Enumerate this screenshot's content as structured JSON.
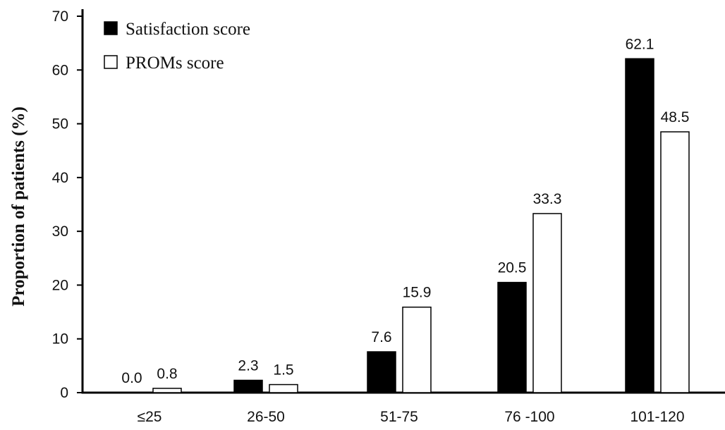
{
  "chart_data": {
    "type": "bar",
    "title": "",
    "xlabel": "",
    "ylabel": "Proportion of patients (%)",
    "categories": [
      "≤25",
      "26-50",
      "51-75",
      "76 -100",
      "101-120"
    ],
    "series": [
      {
        "name": "Satisfaction score",
        "values": [
          0.0,
          2.3,
          7.6,
          20.5,
          62.1
        ],
        "labels": [
          "0.0",
          "2.3",
          "7.6",
          "20.5",
          "62.1"
        ],
        "fill": "#000000"
      },
      {
        "name": "PROMs score",
        "values": [
          0.8,
          1.5,
          15.9,
          33.3,
          48.5
        ],
        "labels": [
          "0.8",
          "1.5",
          "15.9",
          "33.3",
          "48.5"
        ],
        "fill": "#ffffff"
      }
    ],
    "ylim": [
      0,
      70
    ],
    "yticks": [
      0,
      10,
      20,
      30,
      40,
      50,
      60,
      70
    ],
    "grid": false,
    "legend_position": "top-left"
  }
}
